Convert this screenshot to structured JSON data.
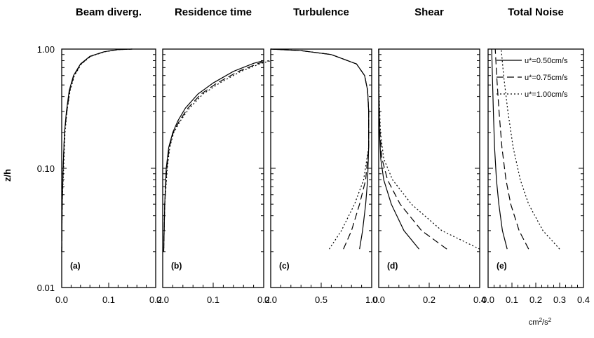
{
  "figure": {
    "y_axis_label": "z/h",
    "unit_label": {
      "base": "cm",
      "exp1": "2",
      "mid": "/s",
      "exp2": "2"
    }
  },
  "legend": [
    {
      "label": "u*=0.50cm/s",
      "style": "solid"
    },
    {
      "label": "u*=0.75cm/s",
      "style": "dashed"
    },
    {
      "label": "u*=1.00cm/s",
      "style": "dotted"
    }
  ],
  "chart_data": [
    {
      "type": "line",
      "title": "Beam diverg.",
      "panel_label": "(a)",
      "ylabel": "z/h",
      "yscale": "log",
      "ylim": [
        0.01,
        1.0
      ],
      "yticks": [
        "0.01",
        "0.10",
        "1.00"
      ],
      "xlim": [
        0,
        0.2
      ],
      "xticks": [
        "0.0",
        "0.1",
        "0.2"
      ],
      "series": [
        {
          "style": "solid",
          "points": [
            [
              0.0,
              0.02
            ],
            [
              0.001,
              0.05
            ],
            [
              0.003,
              0.1
            ],
            [
              0.006,
              0.2
            ],
            [
              0.01,
              0.3
            ],
            [
              0.016,
              0.45
            ],
            [
              0.025,
              0.6
            ],
            [
              0.04,
              0.75
            ],
            [
              0.06,
              0.87
            ],
            [
              0.09,
              0.95
            ],
            [
              0.12,
              0.99
            ],
            [
              0.15,
              1.0
            ]
          ]
        },
        {
          "style": "dashed",
          "points": [
            [
              0.0,
              0.02
            ],
            [
              0.001,
              0.05
            ],
            [
              0.003,
              0.1
            ],
            [
              0.006,
              0.2
            ],
            [
              0.011,
              0.3
            ],
            [
              0.017,
              0.45
            ],
            [
              0.026,
              0.6
            ],
            [
              0.041,
              0.75
            ],
            [
              0.061,
              0.87
            ],
            [
              0.091,
              0.95
            ],
            [
              0.121,
              0.99
            ],
            [
              0.15,
              1.0
            ]
          ]
        },
        {
          "style": "dotted",
          "points": [
            [
              0.0,
              0.02
            ],
            [
              0.001,
              0.05
            ],
            [
              0.004,
              0.1
            ],
            [
              0.007,
              0.2
            ],
            [
              0.011,
              0.3
            ],
            [
              0.018,
              0.45
            ],
            [
              0.027,
              0.6
            ],
            [
              0.042,
              0.75
            ],
            [
              0.062,
              0.87
            ],
            [
              0.092,
              0.95
            ],
            [
              0.122,
              0.99
            ],
            [
              0.15,
              1.0
            ]
          ]
        }
      ]
    },
    {
      "type": "line",
      "title": "Residence time",
      "panel_label": "(b)",
      "yscale": "log",
      "ylim": [
        0.01,
        1.0
      ],
      "xlim": [
        0,
        0.2
      ],
      "xticks": [
        "0.0",
        "0.1",
        "0.2"
      ],
      "series": [
        {
          "style": "solid",
          "points": [
            [
              0.002,
              0.02
            ],
            [
              0.004,
              0.05
            ],
            [
              0.007,
              0.1
            ],
            [
              0.012,
              0.15
            ],
            [
              0.02,
              0.2
            ],
            [
              0.03,
              0.25
            ],
            [
              0.045,
              0.32
            ],
            [
              0.07,
              0.42
            ],
            [
              0.1,
              0.52
            ],
            [
              0.14,
              0.65
            ],
            [
              0.18,
              0.76
            ],
            [
              0.2,
              0.8
            ]
          ]
        },
        {
          "style": "dashed",
          "points": [
            [
              0.002,
              0.02
            ],
            [
              0.004,
              0.05
            ],
            [
              0.008,
              0.1
            ],
            [
              0.013,
              0.15
            ],
            [
              0.021,
              0.2
            ],
            [
              0.033,
              0.25
            ],
            [
              0.05,
              0.32
            ],
            [
              0.076,
              0.42
            ],
            [
              0.108,
              0.52
            ],
            [
              0.15,
              0.65
            ],
            [
              0.19,
              0.76
            ],
            [
              0.21,
              0.8
            ]
          ]
        },
        {
          "style": "dotted",
          "points": [
            [
              0.002,
              0.02
            ],
            [
              0.004,
              0.05
            ],
            [
              0.009,
              0.1
            ],
            [
              0.014,
              0.15
            ],
            [
              0.022,
              0.2
            ],
            [
              0.035,
              0.25
            ],
            [
              0.053,
              0.32
            ],
            [
              0.08,
              0.42
            ],
            [
              0.113,
              0.52
            ],
            [
              0.155,
              0.65
            ],
            [
              0.195,
              0.76
            ],
            [
              0.215,
              0.8
            ]
          ]
        }
      ]
    },
    {
      "type": "line",
      "title": "Turbulence",
      "panel_label": "(c)",
      "yscale": "log",
      "ylim": [
        0.01,
        1.0
      ],
      "xlim": [
        0,
        1.0
      ],
      "xticks": [
        "0.0",
        "0.5",
        "1.0"
      ],
      "series": [
        {
          "style": "solid",
          "points": [
            [
              0.88,
              0.021
            ],
            [
              0.91,
              0.03
            ],
            [
              0.94,
              0.05
            ],
            [
              0.96,
              0.08
            ],
            [
              0.97,
              0.15
            ],
            [
              0.97,
              0.3
            ],
            [
              0.96,
              0.45
            ],
            [
              0.93,
              0.6
            ],
            [
              0.85,
              0.75
            ],
            [
              0.6,
              0.9
            ],
            [
              0.3,
              0.97
            ],
            [
              0.0,
              1.0
            ]
          ]
        },
        {
          "style": "dashed",
          "points": [
            [
              0.72,
              0.021
            ],
            [
              0.8,
              0.03
            ],
            [
              0.88,
              0.05
            ],
            [
              0.94,
              0.08
            ],
            [
              0.97,
              0.15
            ],
            [
              0.97,
              0.3
            ],
            [
              0.96,
              0.45
            ],
            [
              0.93,
              0.6
            ],
            [
              0.85,
              0.75
            ],
            [
              0.6,
              0.9
            ],
            [
              0.3,
              0.97
            ],
            [
              0.0,
              1.0
            ]
          ]
        },
        {
          "style": "dotted",
          "points": [
            [
              0.58,
              0.021
            ],
            [
              0.7,
              0.03
            ],
            [
              0.83,
              0.05
            ],
            [
              0.92,
              0.08
            ],
            [
              0.97,
              0.15
            ],
            [
              0.97,
              0.3
            ],
            [
              0.96,
              0.45
            ],
            [
              0.93,
              0.6
            ],
            [
              0.85,
              0.75
            ],
            [
              0.6,
              0.9
            ],
            [
              0.3,
              0.97
            ],
            [
              0.0,
              1.0
            ]
          ]
        }
      ]
    },
    {
      "type": "line",
      "title": "Shear",
      "panel_label": "(d)",
      "yscale": "log",
      "ylim": [
        0.01,
        1.0
      ],
      "xlim": [
        0,
        0.4
      ],
      "xticks": [
        "0.0",
        "0.2",
        "0.4"
      ],
      "series": [
        {
          "style": "solid",
          "points": [
            [
              0.16,
              0.021
            ],
            [
              0.1,
              0.03
            ],
            [
              0.05,
              0.05
            ],
            [
              0.02,
              0.08
            ],
            [
              0.008,
              0.12
            ],
            [
              0.003,
              0.2
            ],
            [
              0.001,
              0.4
            ],
            [
              0.0,
              1.0
            ]
          ]
        },
        {
          "style": "dashed",
          "points": [
            [
              0.27,
              0.021
            ],
            [
              0.17,
              0.03
            ],
            [
              0.085,
              0.05
            ],
            [
              0.035,
              0.08
            ],
            [
              0.013,
              0.12
            ],
            [
              0.005,
              0.2
            ],
            [
              0.001,
              0.4
            ],
            [
              0.0,
              1.0
            ]
          ]
        },
        {
          "style": "dotted",
          "points": [
            [
              0.4,
              0.021
            ],
            [
              0.25,
              0.03
            ],
            [
              0.13,
              0.05
            ],
            [
              0.055,
              0.08
            ],
            [
              0.02,
              0.12
            ],
            [
              0.007,
              0.2
            ],
            [
              0.002,
              0.4
            ],
            [
              0.0,
              1.0
            ]
          ]
        }
      ]
    },
    {
      "type": "line",
      "title": "Total Noise",
      "panel_label": "(e)",
      "yscale": "log",
      "ylim": [
        0.01,
        1.0
      ],
      "xlim": [
        0,
        0.4
      ],
      "xticks": [
        "0.0",
        "0.1",
        "0.2",
        "0.3",
        "0.4"
      ],
      "series": [
        {
          "style": "solid",
          "points": [
            [
              0.08,
              0.021
            ],
            [
              0.06,
              0.03
            ],
            [
              0.045,
              0.05
            ],
            [
              0.035,
              0.08
            ],
            [
              0.027,
              0.15
            ],
            [
              0.022,
              0.3
            ],
            [
              0.018,
              0.6
            ],
            [
              0.015,
              1.0
            ]
          ]
        },
        {
          "style": "dashed",
          "points": [
            [
              0.17,
              0.021
            ],
            [
              0.13,
              0.03
            ],
            [
              0.095,
              0.05
            ],
            [
              0.075,
              0.08
            ],
            [
              0.058,
              0.15
            ],
            [
              0.046,
              0.3
            ],
            [
              0.036,
              0.6
            ],
            [
              0.03,
              1.0
            ]
          ]
        },
        {
          "style": "dotted",
          "points": [
            [
              0.3,
              0.021
            ],
            [
              0.23,
              0.03
            ],
            [
              0.17,
              0.05
            ],
            [
              0.135,
              0.08
            ],
            [
              0.105,
              0.15
            ],
            [
              0.083,
              0.3
            ],
            [
              0.065,
              0.6
            ],
            [
              0.055,
              1.0
            ]
          ]
        }
      ]
    }
  ]
}
